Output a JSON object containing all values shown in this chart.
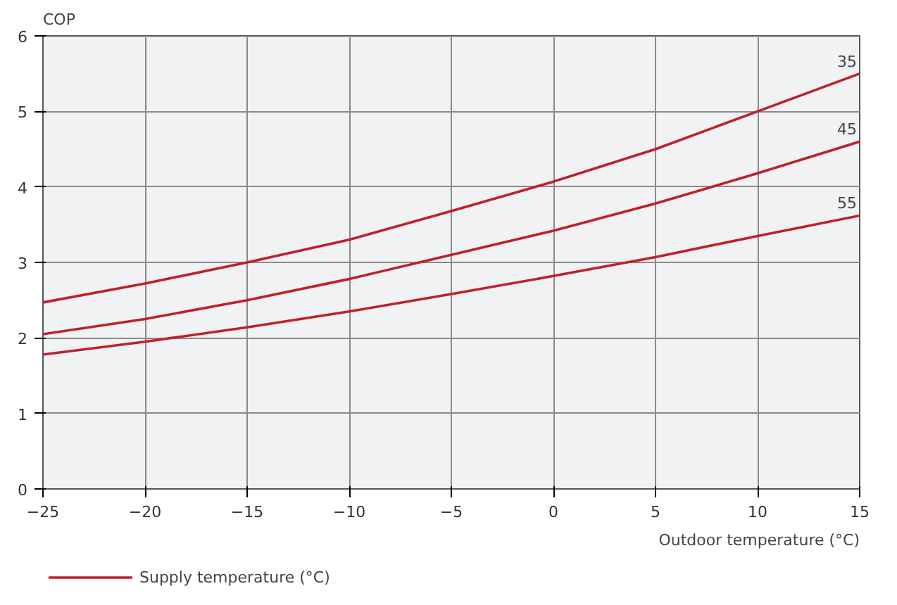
{
  "chart_data": {
    "type": "line",
    "ylabel": "COP",
    "xlabel": "Outdoor temperature (°C)",
    "legend_title": "Supply temperature (°C)",
    "grid": true,
    "x": [
      -25,
      -20,
      -15,
      -10,
      -5,
      0,
      5,
      10,
      15
    ],
    "xlim": [
      -25,
      15
    ],
    "xticks": [
      -25,
      -20,
      -15,
      -10,
      -5,
      0,
      5,
      10,
      15
    ],
    "ylim": [
      0,
      6
    ],
    "yticks": [
      0,
      1,
      2,
      3,
      4,
      5,
      6
    ],
    "series": [
      {
        "name": "35",
        "color": "#c0202a",
        "values": [
          2.47,
          2.72,
          3.0,
          3.3,
          3.68,
          4.07,
          4.5,
          5.0,
          5.5
        ]
      },
      {
        "name": "45",
        "color": "#c0202a",
        "values": [
          2.05,
          2.25,
          2.5,
          2.78,
          3.1,
          3.42,
          3.78,
          4.18,
          4.6
        ]
      },
      {
        "name": "55",
        "color": "#c0202a",
        "values": [
          1.78,
          1.95,
          2.14,
          2.35,
          2.58,
          2.82,
          3.07,
          3.35,
          3.62
        ]
      }
    ]
  }
}
